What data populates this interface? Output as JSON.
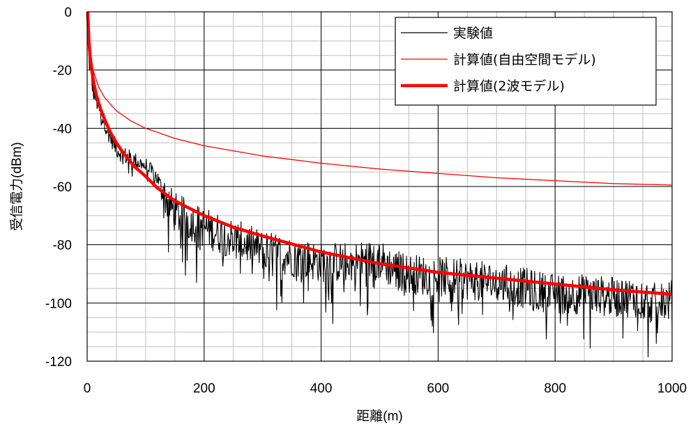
{
  "chart_data": {
    "type": "line",
    "title": "",
    "xlabel": "距離(m)",
    "ylabel": "受信電力(dBm)",
    "xlim": [
      0,
      1000
    ],
    "ylim": [
      -120,
      0
    ],
    "xticks": [
      0,
      200,
      400,
      600,
      800,
      1000
    ],
    "yticks": [
      0,
      -20,
      -40,
      -60,
      -80,
      -100,
      -120
    ],
    "grid": {
      "major": true,
      "minor": true,
      "major_color": "#000000",
      "minor_color": "#bfbfbf"
    },
    "legend": {
      "placement": "top-right"
    },
    "series": [
      {
        "name": "実験値",
        "color": "#000000",
        "style": "noisy",
        "x": [
          1,
          3,
          5,
          8,
          10,
          15,
          20,
          25,
          30,
          40,
          50,
          60,
          70,
          80,
          100,
          120,
          130,
          140,
          150,
          180,
          200,
          250,
          300,
          350,
          400,
          450,
          500,
          520,
          550,
          600,
          650,
          700,
          750,
          800,
          850,
          900,
          950,
          970,
          1000
        ],
        "y": [
          -10,
          -16,
          -20,
          -24,
          -27,
          -30,
          -33,
          -36,
          -38,
          -43,
          -47,
          -49,
          -50,
          -51,
          -53,
          -57,
          -62,
          -66,
          -69,
          -72,
          -74,
          -78,
          -82,
          -84,
          -86,
          -86,
          -85,
          -88,
          -90,
          -91,
          -92,
          -93,
          -95,
          -97,
          -97,
          -98,
          -98,
          -100,
          -99
        ]
      },
      {
        "name": "計算値(自由空間モデル)",
        "color": "#ff0000",
        "style": "thin",
        "x": [
          1,
          5,
          10,
          20,
          30,
          50,
          75,
          100,
          150,
          200,
          300,
          400,
          500,
          600,
          700,
          800,
          900,
          1000
        ],
        "y": [
          0,
          -14,
          -20,
          -26,
          -29.5,
          -34,
          -37.5,
          -40,
          -43.5,
          -46,
          -49.5,
          -52,
          -54,
          -55.5,
          -57,
          -58,
          -59,
          -59.5
        ]
      },
      {
        "name": "計算値(2波モデル)",
        "color": "#ff0000",
        "style": "thick",
        "x": [
          1,
          3,
          5,
          8,
          10,
          15,
          20,
          25,
          30,
          40,
          50,
          60,
          80,
          100,
          120,
          150,
          200,
          250,
          300,
          400,
          500,
          600,
          700,
          800,
          900,
          1000
        ],
        "y": [
          0,
          -10,
          -15,
          -20,
          -23,
          -28,
          -31.5,
          -34.5,
          -37,
          -41.5,
          -45,
          -48,
          -53,
          -56.5,
          -60.5,
          -65,
          -70,
          -74,
          -77,
          -82.5,
          -86.5,
          -89.5,
          -91.5,
          -93.5,
          -95.5,
          -97
        ]
      }
    ]
  }
}
